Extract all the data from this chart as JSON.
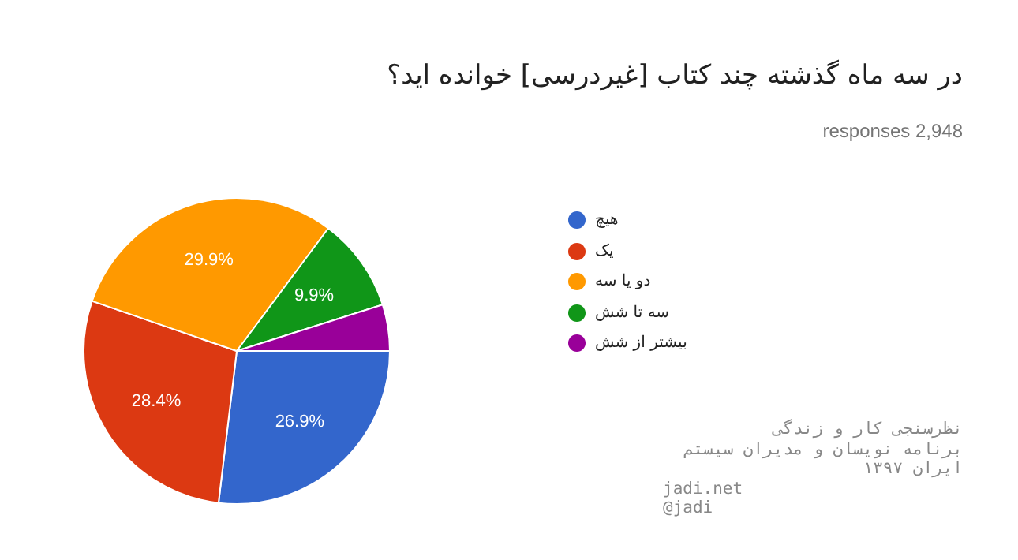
{
  "chart_data": {
    "type": "pie",
    "title": "در سه ماه گذشته چند کتاب [غیردرسی] خوانده اید؟",
    "subtitle": "responses 2,948",
    "categories": [
      "هیچ",
      "یک",
      "دو یا سه",
      "سه تا شش",
      "بیشتر از شش"
    ],
    "values": [
      26.9,
      28.4,
      29.9,
      9.9,
      4.9
    ],
    "colors": [
      "#3366cc",
      "#dc3912",
      "#ff9900",
      "#109618",
      "#990099"
    ],
    "value_labels": [
      "26.9%",
      "28.4%",
      "29.9%",
      "9.9%",
      null
    ],
    "legend": "right",
    "annotations": [
      "نظرسنجی کار و زندگی",
      "برنامه نویسان و مدیران سیستم",
      "ایران ۱۳۹۷",
      "jadi.net",
      "@jadi"
    ]
  }
}
